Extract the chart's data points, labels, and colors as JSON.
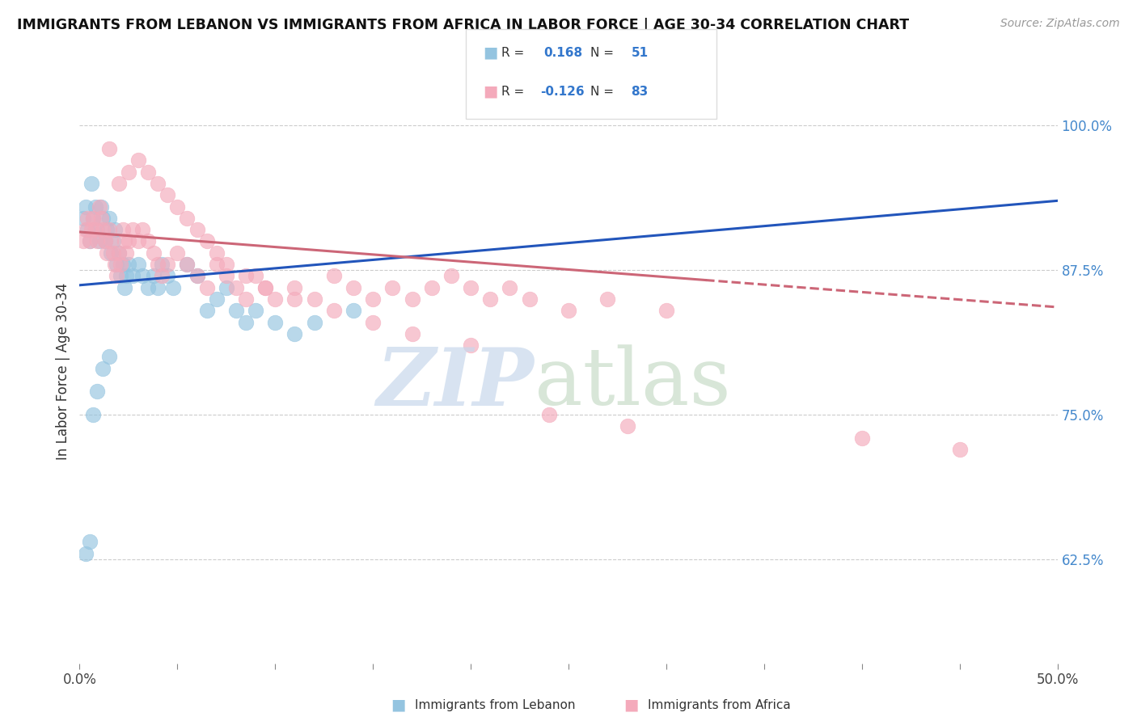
{
  "title": "IMMIGRANTS FROM LEBANON VS IMMIGRANTS FROM AFRICA IN LABOR FORCE | AGE 30-34 CORRELATION CHART",
  "source": "Source: ZipAtlas.com",
  "ylabel": "In Labor Force | Age 30-34",
  "right_yticks": [
    1.0,
    0.875,
    0.75,
    0.625
  ],
  "right_yticklabels": [
    "100.0%",
    "87.5%",
    "75.0%",
    "62.5%"
  ],
  "xlim": [
    0.0,
    0.5
  ],
  "ylim": [
    0.535,
    1.04
  ],
  "blue_color": "#94C4E0",
  "pink_color": "#F4AABB",
  "blue_line_color": "#2255BB",
  "pink_line_color": "#CC6677",
  "blue_r": "0.168",
  "blue_n": "51",
  "pink_r": "-0.126",
  "pink_n": "83",
  "blue_scatter_x": [
    0.002,
    0.003,
    0.004,
    0.005,
    0.006,
    0.007,
    0.008,
    0.009,
    0.01,
    0.011,
    0.012,
    0.013,
    0.014,
    0.015,
    0.016,
    0.017,
    0.018,
    0.019,
    0.02,
    0.021,
    0.022,
    0.023,
    0.024,
    0.025,
    0.027,
    0.03,
    0.032,
    0.035,
    0.038,
    0.04,
    0.042,
    0.045,
    0.048,
    0.055,
    0.06,
    0.065,
    0.07,
    0.075,
    0.08,
    0.085,
    0.09,
    0.1,
    0.11,
    0.12,
    0.14,
    0.003,
    0.005,
    0.007,
    0.009,
    0.012,
    0.015
  ],
  "blue_scatter_y": [
    0.92,
    0.93,
    0.91,
    0.9,
    0.95,
    0.92,
    0.93,
    0.91,
    0.9,
    0.93,
    0.92,
    0.9,
    0.91,
    0.92,
    0.89,
    0.9,
    0.91,
    0.88,
    0.89,
    0.87,
    0.88,
    0.86,
    0.87,
    0.88,
    0.87,
    0.88,
    0.87,
    0.86,
    0.87,
    0.86,
    0.88,
    0.87,
    0.86,
    0.88,
    0.87,
    0.84,
    0.85,
    0.86,
    0.84,
    0.83,
    0.84,
    0.83,
    0.82,
    0.83,
    0.84,
    0.63,
    0.64,
    0.75,
    0.77,
    0.79,
    0.8
  ],
  "pink_scatter_x": [
    0.002,
    0.003,
    0.004,
    0.005,
    0.006,
    0.007,
    0.008,
    0.009,
    0.01,
    0.011,
    0.012,
    0.013,
    0.014,
    0.015,
    0.016,
    0.017,
    0.018,
    0.019,
    0.02,
    0.021,
    0.022,
    0.023,
    0.024,
    0.025,
    0.027,
    0.03,
    0.032,
    0.035,
    0.038,
    0.04,
    0.042,
    0.045,
    0.05,
    0.055,
    0.06,
    0.065,
    0.07,
    0.075,
    0.08,
    0.085,
    0.09,
    0.095,
    0.1,
    0.11,
    0.12,
    0.13,
    0.14,
    0.15,
    0.16,
    0.17,
    0.18,
    0.19,
    0.2,
    0.21,
    0.22,
    0.23,
    0.25,
    0.27,
    0.3,
    0.015,
    0.02,
    0.025,
    0.03,
    0.035,
    0.04,
    0.045,
    0.05,
    0.055,
    0.06,
    0.065,
    0.07,
    0.075,
    0.085,
    0.095,
    0.11,
    0.13,
    0.15,
    0.17,
    0.2,
    0.24,
    0.28,
    0.4,
    0.45
  ],
  "pink_scatter_y": [
    0.9,
    0.91,
    0.92,
    0.9,
    0.91,
    0.92,
    0.91,
    0.9,
    0.93,
    0.92,
    0.91,
    0.9,
    0.89,
    0.91,
    0.9,
    0.89,
    0.88,
    0.87,
    0.89,
    0.88,
    0.91,
    0.9,
    0.89,
    0.9,
    0.91,
    0.9,
    0.91,
    0.9,
    0.89,
    0.88,
    0.87,
    0.88,
    0.89,
    0.88,
    0.87,
    0.86,
    0.88,
    0.87,
    0.86,
    0.85,
    0.87,
    0.86,
    0.85,
    0.86,
    0.85,
    0.87,
    0.86,
    0.85,
    0.86,
    0.85,
    0.86,
    0.87,
    0.86,
    0.85,
    0.86,
    0.85,
    0.84,
    0.85,
    0.84,
    0.98,
    0.95,
    0.96,
    0.97,
    0.96,
    0.95,
    0.94,
    0.93,
    0.92,
    0.91,
    0.9,
    0.89,
    0.88,
    0.87,
    0.86,
    0.85,
    0.84,
    0.83,
    0.82,
    0.81,
    0.75,
    0.74,
    0.73,
    0.72
  ]
}
